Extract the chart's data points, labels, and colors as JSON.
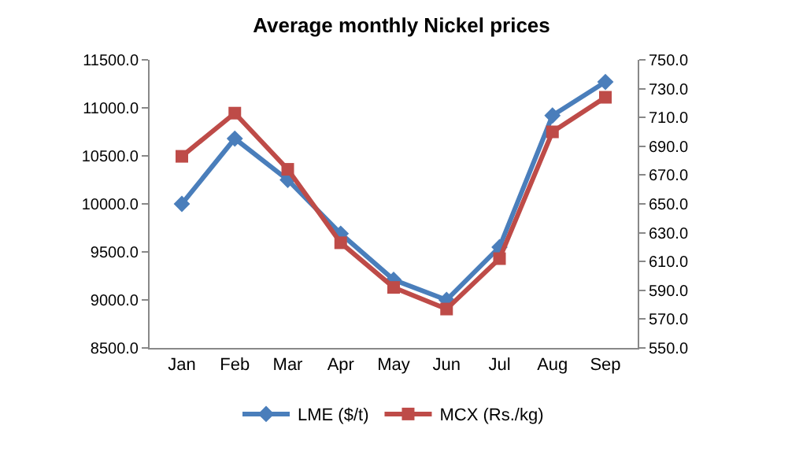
{
  "chart_data": {
    "type": "line",
    "title": "Average monthly Nickel prices",
    "categories": [
      "Jan",
      "Feb",
      "Mar",
      "Apr",
      "May",
      "Jun",
      "Jul",
      "Aug",
      "Sep"
    ],
    "series": [
      {
        "name": "LME ($/t)",
        "color": "#4a7ebb",
        "marker": "diamond",
        "values": [
          10000,
          10680,
          10250,
          9690,
          9210,
          9000,
          9550,
          10920,
          11270
        ]
      },
      {
        "name": "MCX (Rs./kg)",
        "color": "#be4b48",
        "marker": "square",
        "axis": "y2",
        "values": [
          683,
          713,
          674,
          623,
          592,
          577,
          612,
          700,
          724
        ]
      }
    ],
    "ylim": [
      8500,
      11500
    ],
    "yticks": [
      {
        "value": 8500,
        "label": "8500.0"
      },
      {
        "value": 9000,
        "label": "9000.0"
      },
      {
        "value": 9500,
        "label": "9500.0"
      },
      {
        "value": 10000,
        "label": "10000.0"
      },
      {
        "value": 10500,
        "label": "10500.0"
      },
      {
        "value": 11000,
        "label": "11000.0"
      },
      {
        "value": 11500,
        "label": "11500.0"
      }
    ],
    "y2lim": [
      550,
      750
    ],
    "y2ticks": [
      {
        "value": 550,
        "label": "550.0"
      },
      {
        "value": 570,
        "label": "570.0"
      },
      {
        "value": 590,
        "label": "590.0"
      },
      {
        "value": 610,
        "label": "610.0"
      },
      {
        "value": 630,
        "label": "630.0"
      },
      {
        "value": 650,
        "label": "650.0"
      },
      {
        "value": 670,
        "label": "670.0"
      },
      {
        "value": 690,
        "label": "690.0"
      },
      {
        "value": 710,
        "label": "710.0"
      },
      {
        "value": 730,
        "label": "730.0"
      },
      {
        "value": 750,
        "label": "750.0"
      }
    ],
    "legend": "bottom"
  }
}
